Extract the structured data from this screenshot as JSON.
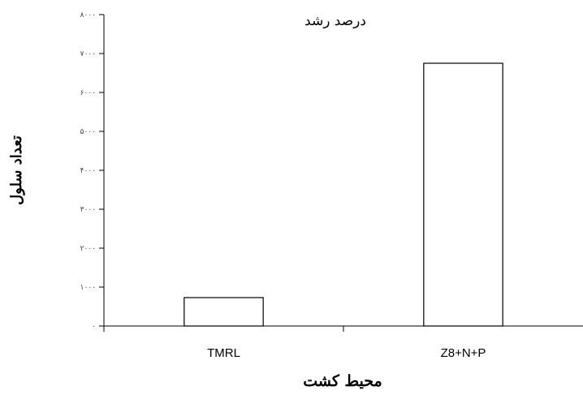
{
  "chart_data": {
    "type": "bar",
    "title": "درصد رشد",
    "xlabel": "محیط کشت",
    "ylabel": "تعداد سلول",
    "categories": [
      "TMRL",
      "Z8+N+P"
    ],
    "values": [
      730,
      6750
    ],
    "ylim": [
      0,
      8000
    ],
    "yticks": [
      0,
      1000,
      2000,
      3000,
      4000,
      5000,
      6000,
      7000,
      8000
    ],
    "ytick_labels": [
      "۰",
      "۱۰۰۰",
      "۲۰۰۰",
      "۳۰۰۰",
      "۴۰۰۰",
      "۵۰۰۰",
      "۶۰۰۰",
      "۷۰۰۰",
      "۸۰۰۰"
    ],
    "grid": false,
    "bar_fill": "#ffffff",
    "bar_stroke": "#000000"
  }
}
